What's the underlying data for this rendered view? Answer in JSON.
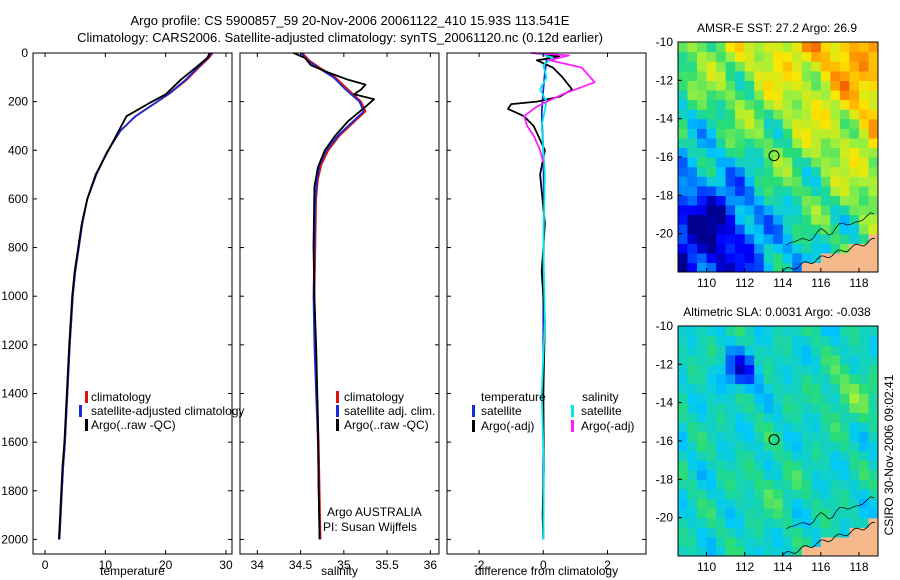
{
  "title": {
    "line1": "Argo profile: CS 5900857_59 20-Nov-2006 20061122_410 15.93S 113.541E",
    "line2": "Climatology: CARS2006. Satellite-adjusted climatology: synTS_20061120.nc (0.12d earlier)"
  },
  "colors": {
    "climatology": "#e01010",
    "satellite": "#1a2ad8",
    "argo": "#000000",
    "satellite_diff": "#00e8e8",
    "argo_adj": "#ff20ff",
    "land": "#f6b98c",
    "coast": "#000000"
  },
  "footer": {
    "credit": "CSIRO 30-Nov-2006 09:02:41"
  },
  "chart_data": [
    {
      "id": "temperature",
      "type": "line",
      "xlabel": "temperature",
      "ylabel": "",
      "xlim": [
        -2,
        31
      ],
      "ylim": [
        2060,
        0
      ],
      "xticks": [
        0,
        10,
        20,
        30
      ],
      "yticks": [
        0,
        200,
        400,
        600,
        800,
        1000,
        1200,
        1400,
        1600,
        1800,
        2000
      ],
      "legend": {
        "position": "bottom-right",
        "entries": [
          "climatology",
          "satellite-adjusted climatology",
          "Argo(..raw -QC)"
        ]
      },
      "series": [
        {
          "name": "climatology",
          "color": "#e01010",
          "x": [
            27.8,
            27.2,
            25.5,
            23.5,
            20.5,
            18.0,
            15.0,
            12.5,
            10.2,
            8.5,
            7.0,
            6.2,
            5.6,
            5.0,
            4.6,
            4.1,
            3.7,
            3.3,
            3.0,
            2.8,
            2.6,
            2.4
          ],
          "y": [
            0,
            20,
            60,
            110,
            170,
            210,
            260,
            320,
            410,
            500,
            600,
            700,
            800,
            900,
            1000,
            1200,
            1400,
            1600,
            1700,
            1800,
            1900,
            2000
          ]
        },
        {
          "name": "satellite-adjusted climatology",
          "color": "#1a2ad8",
          "x": [
            27.6,
            27.0,
            25.3,
            23.3,
            20.4,
            18.0,
            15.0,
            12.5,
            10.2,
            8.5,
            7.0,
            6.2,
            5.6,
            5.0,
            4.6,
            4.1,
            3.7,
            3.3,
            3.0,
            2.8,
            2.6,
            2.4
          ],
          "y": [
            0,
            20,
            60,
            110,
            170,
            210,
            260,
            320,
            410,
            500,
            600,
            700,
            800,
            900,
            1000,
            1200,
            1400,
            1600,
            1700,
            1800,
            1900,
            2000
          ]
        },
        {
          "name": "Argo(..raw -QC)",
          "color": "#000000",
          "x": [
            27.3,
            26.9,
            25.0,
            22.5,
            20.0,
            17.0,
            13.5,
            12.0,
            10.3,
            8.4,
            7.0,
            6.1,
            5.5,
            4.9,
            4.5,
            4.0,
            3.6,
            3.2,
            2.9,
            2.7,
            2.5,
            2.3
          ],
          "y": [
            0,
            20,
            60,
            110,
            170,
            210,
            260,
            330,
            410,
            500,
            600,
            700,
            800,
            900,
            1000,
            1200,
            1400,
            1600,
            1700,
            1800,
            1900,
            2000
          ]
        }
      ]
    },
    {
      "id": "salinity",
      "type": "line",
      "xlabel": "salinity",
      "xlim": [
        33.8,
        36.1
      ],
      "ylim": [
        2060,
        0
      ],
      "xticks": [
        34,
        34.5,
        35,
        35.5,
        36
      ],
      "legend": {
        "position": "bottom-right",
        "entries": [
          "climatology",
          "satellite adj. clim.",
          "Argo(..raw -QC)"
        ]
      },
      "annotation": {
        "line1": "Argo AUSTRALIA",
        "line2": "PI: Susan Wijffels"
      },
      "series": [
        {
          "name": "climatology",
          "color": "#e01010",
          "x": [
            34.52,
            34.6,
            34.72,
            34.9,
            35.05,
            35.2,
            35.25,
            35.1,
            34.95,
            34.82,
            34.74,
            34.7,
            34.68,
            34.67,
            34.66,
            34.67,
            34.69,
            34.71,
            34.72,
            34.73
          ],
          "y": [
            0,
            30,
            60,
            100,
            150,
            200,
            240,
            290,
            340,
            400,
            460,
            520,
            600,
            800,
            1000,
            1200,
            1400,
            1600,
            1800,
            2000
          ]
        },
        {
          "name": "satellite adj. clim.",
          "color": "#1a2ad8",
          "x": [
            34.5,
            34.58,
            34.7,
            34.88,
            35.02,
            35.18,
            35.23,
            35.08,
            34.93,
            34.8,
            34.72,
            34.69,
            34.67,
            34.66,
            34.65,
            34.66,
            34.68,
            34.7,
            34.71,
            34.72
          ],
          "y": [
            0,
            30,
            60,
            100,
            150,
            200,
            240,
            290,
            340,
            400,
            460,
            520,
            600,
            800,
            1000,
            1200,
            1400,
            1600,
            1800,
            2000
          ]
        },
        {
          "name": "Argo(..raw -QC)",
          "color": "#000000",
          "x": [
            34.42,
            34.55,
            34.62,
            34.82,
            35.05,
            35.25,
            35.2,
            35.12,
            35.35,
            35.22,
            35.05,
            34.9,
            34.78,
            34.7,
            34.66,
            34.65,
            34.66,
            34.68,
            34.7,
            34.71,
            34.72
          ],
          "y": [
            0,
            20,
            50,
            80,
            110,
            130,
            150,
            170,
            190,
            230,
            280,
            340,
            400,
            470,
            550,
            800,
            1000,
            1200,
            1500,
            1800,
            2000
          ]
        }
      ]
    },
    {
      "id": "difference",
      "type": "line",
      "xlabel": "difference from climatology",
      "xlim": [
        -3,
        3.2
      ],
      "ylim": [
        2060,
        0
      ],
      "xticks": [
        -2,
        0,
        2
      ],
      "legend": {
        "position": "bottom",
        "temperature_header": "temperature",
        "salinity_header": "salinity",
        "temperature_entries": [
          "satellite",
          "Argo(-adj)"
        ],
        "salinity_entries": [
          "satellite",
          "Argo(-adj)"
        ]
      },
      "series": [
        {
          "name": "temperature satellite",
          "color": "#1a2ad8",
          "x": [
            0.2,
            0.1,
            0.05,
            0.0,
            -0.05,
            0.0,
            0.02,
            0.0,
            0.0,
            0.0
          ],
          "y": [
            0,
            30,
            80,
            150,
            250,
            400,
            600,
            1000,
            1500,
            2000
          ]
        },
        {
          "name": "temperature Argo(-adj)",
          "color": "#000000",
          "x": [
            -0.3,
            0.5,
            -0.2,
            0.3,
            0.6,
            0.9,
            0.5,
            -0.2,
            -1.0,
            -1.1,
            -0.6,
            -0.3,
            0.05,
            -0.1,
            0.05,
            -0.05,
            0.05,
            0.0,
            0.02,
            -0.02,
            0.0
          ],
          "y": [
            0,
            15,
            30,
            60,
            100,
            150,
            180,
            200,
            210,
            230,
            260,
            300,
            400,
            500,
            700,
            900,
            1100,
            1400,
            1700,
            1900,
            2000
          ]
        },
        {
          "name": "salinity satellite",
          "color": "#00e8e8",
          "x": [
            -0.2,
            0.3,
            0.0,
            0.1,
            -0.1,
            0.1,
            -0.05,
            0.05,
            0.0,
            0.05,
            -0.05,
            0.02,
            0.0
          ],
          "y": [
            0,
            20,
            50,
            100,
            150,
            200,
            300,
            500,
            800,
            1100,
            1400,
            1700,
            2000
          ]
        },
        {
          "name": "salinity Argo(-adj)",
          "color": "#ff20ff",
          "x": [
            -0.4,
            0.8,
            0.2,
            1.2,
            1.6,
            0.6,
            -0.2,
            -0.6,
            -0.5,
            -0.3,
            -0.1,
            0.0
          ],
          "y": [
            0,
            10,
            30,
            60,
            120,
            170,
            220,
            260,
            300,
            340,
            400,
            450
          ]
        }
      ]
    },
    {
      "id": "sst-map",
      "type": "heatmap",
      "title": "AMSR-E SST: 27.2 Argo: 26.9",
      "xlim": [
        108.5,
        119
      ],
      "ylim": [
        -22,
        -10
      ],
      "xticks": [
        110,
        112,
        114,
        116,
        118
      ],
      "yticks": [
        -10,
        -12,
        -14,
        -16,
        -18,
        -20
      ],
      "marker": {
        "lon": 113.541,
        "lat": -15.93
      }
    },
    {
      "id": "sla-map",
      "type": "heatmap",
      "title": "Altimetric SLA: 0.0031 Argo: -0.038",
      "xlim": [
        108.5,
        119
      ],
      "ylim": [
        -22,
        -10
      ],
      "xticks": [
        110,
        112,
        114,
        116,
        118
      ],
      "yticks": [
        -10,
        -12,
        -14,
        -16,
        -18,
        -20
      ],
      "marker": {
        "lon": 113.541,
        "lat": -15.93
      }
    }
  ]
}
